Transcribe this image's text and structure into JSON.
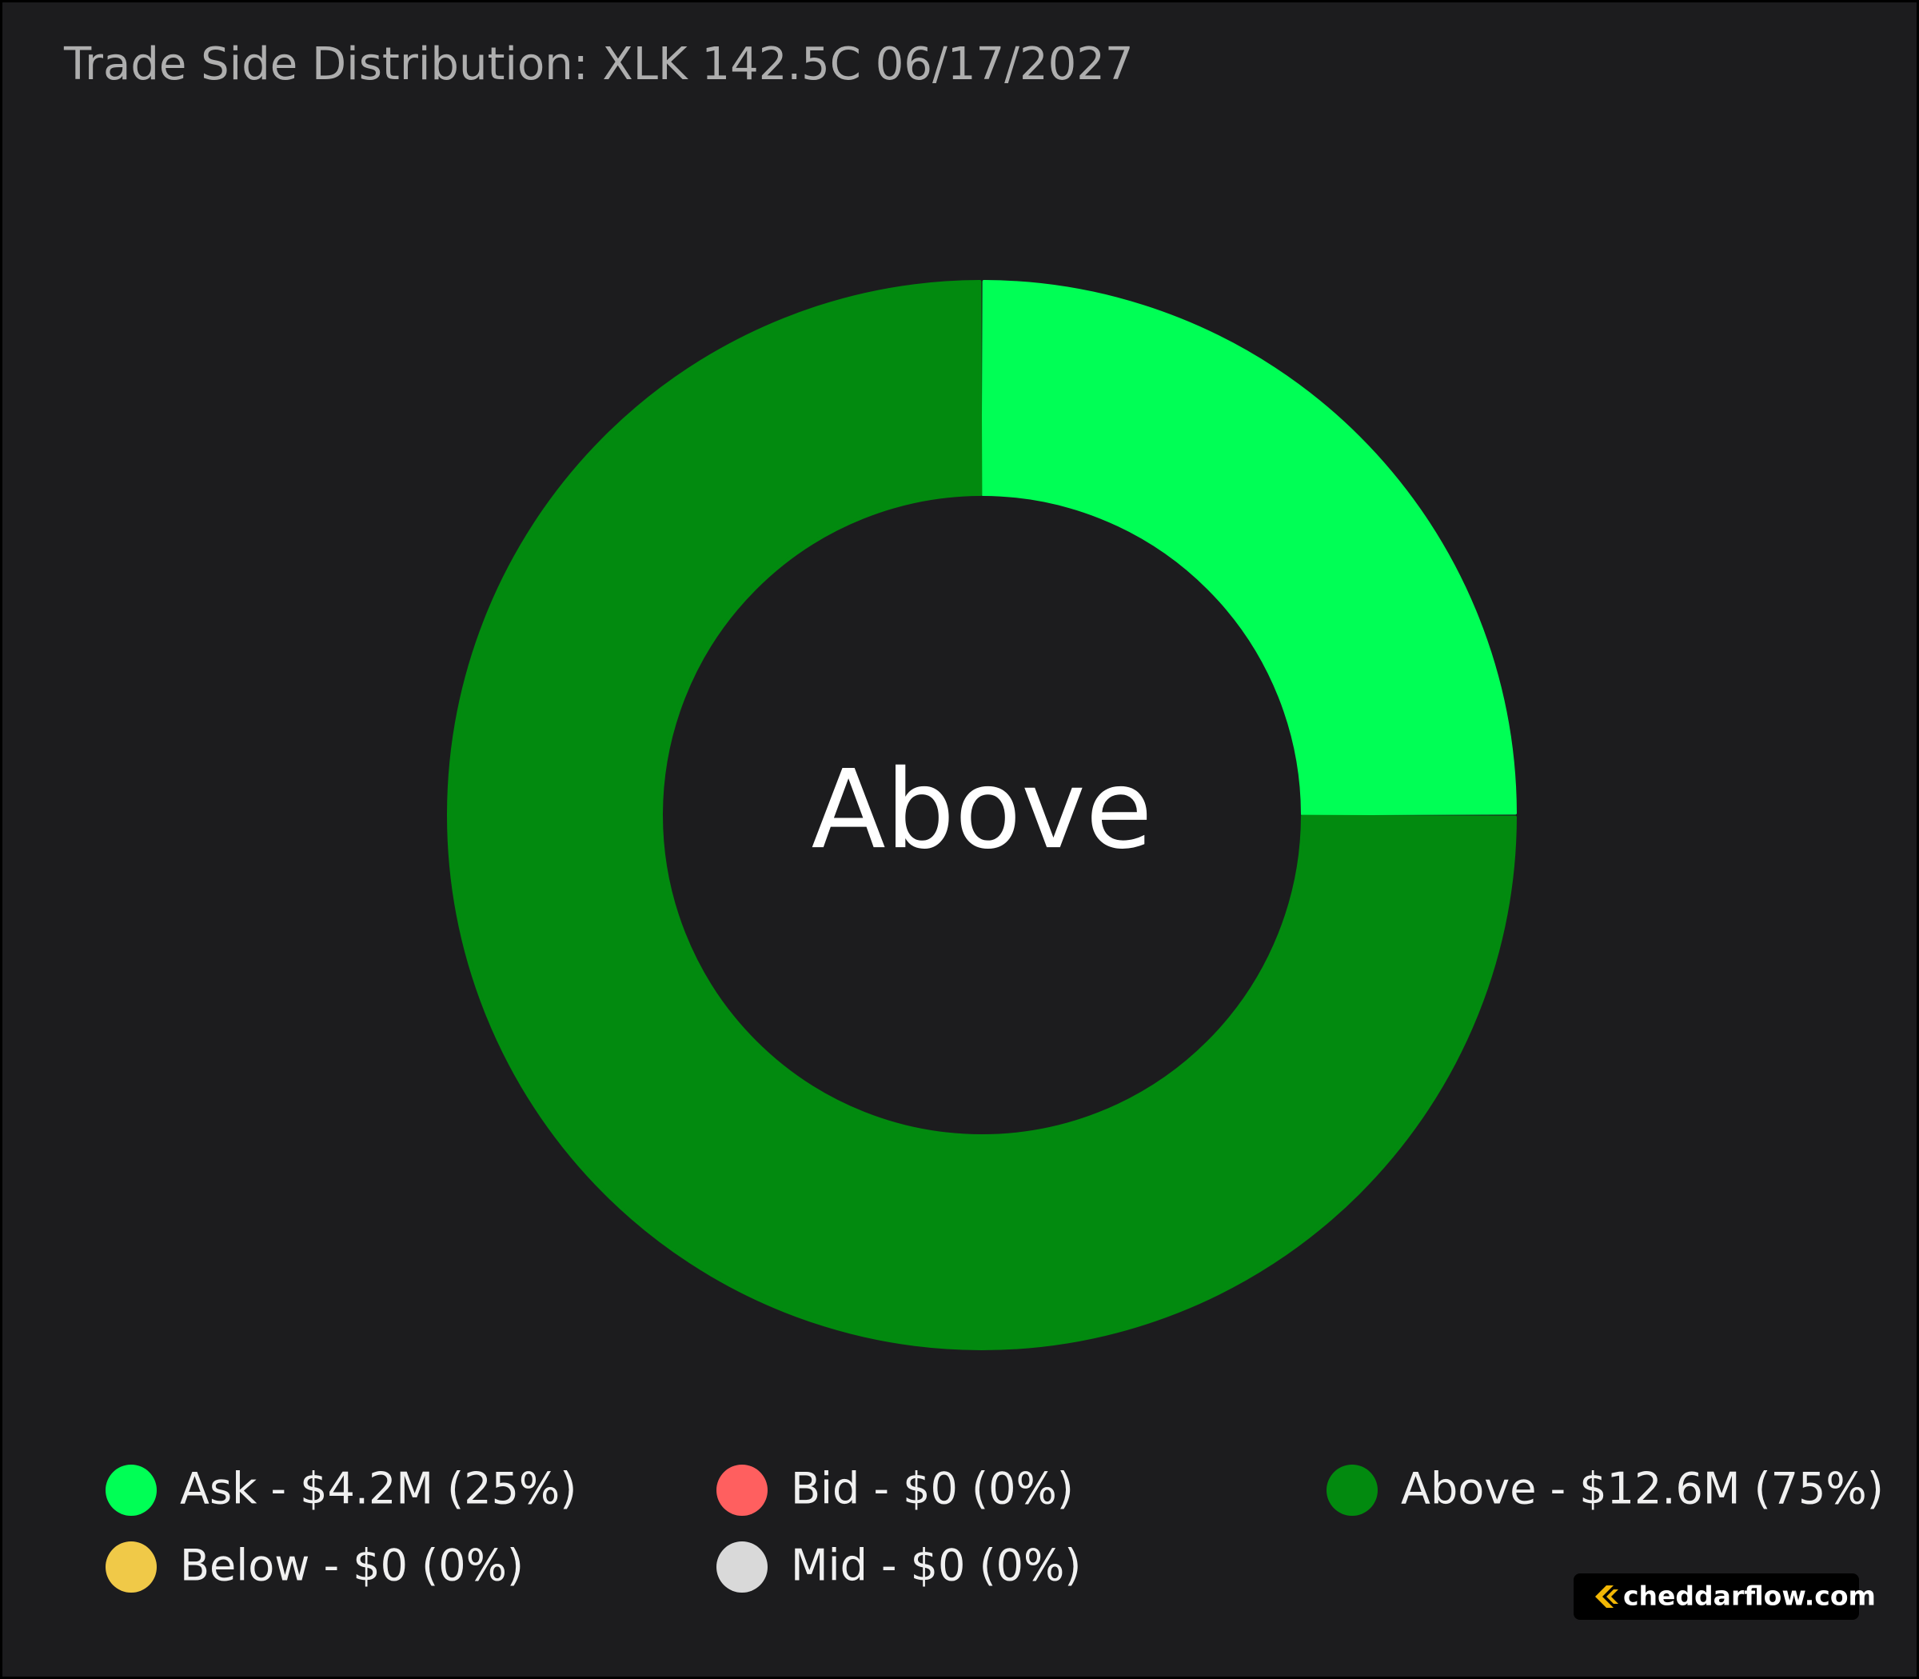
{
  "chart_data": {
    "type": "donut",
    "title": "Trade Side Distribution: XLK 142.5C 06/17/2027",
    "center_label": "Above",
    "categories": [
      "Ask",
      "Bid",
      "Above",
      "Below",
      "Mid"
    ],
    "values": [
      25,
      0,
      75,
      0,
      0
    ],
    "value_labels": [
      "Ask - $4.2M (25%)",
      "Bid - $0 (0%)",
      "Above - $12.6M (75%)",
      "Below - $0 (0%)",
      "Mid - $0 (0%)"
    ],
    "colors": [
      "#00ff55",
      "#ff5f5f",
      "#028a0f",
      "#f0c948",
      "#d9d9d9"
    ]
  },
  "watermark": "cheddarflow.com"
}
